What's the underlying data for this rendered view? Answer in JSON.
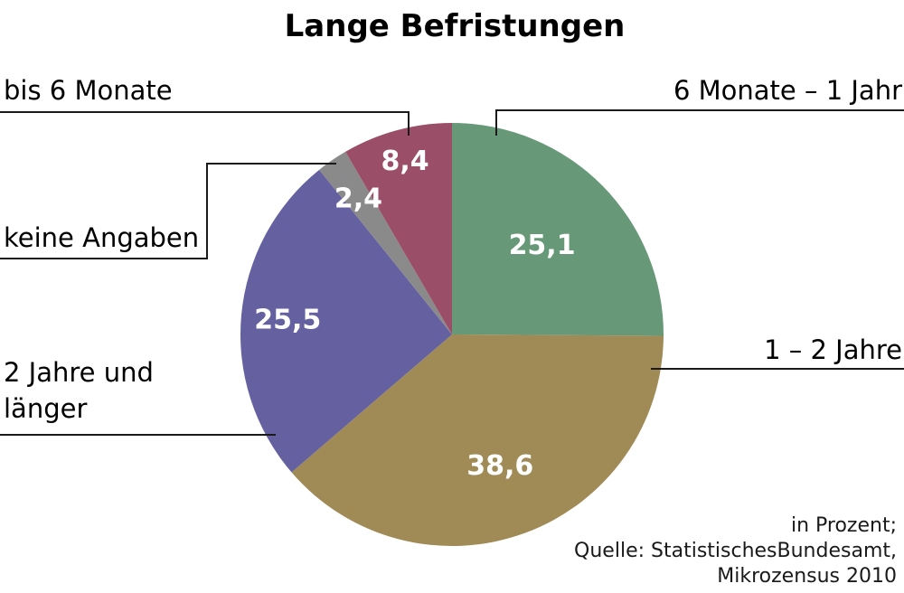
{
  "chart_data": {
    "type": "pie",
    "title": "Lange Befristungen",
    "slices": [
      {
        "label": "6 Monate – 1 Jahr",
        "value": 25.1,
        "display": "25,1",
        "color": "#679878"
      },
      {
        "label": "1 – 2 Jahre",
        "value": 38.6,
        "display": "38,6",
        "color": "#a08b57"
      },
      {
        "label": [
          "2 Jahre und",
          "länger"
        ],
        "value": 25.5,
        "display": "25,5",
        "color": "#6561a0"
      },
      {
        "label": "keine Angaben",
        "value": 2.4,
        "display": "2,4",
        "color": "#8a8a8a"
      },
      {
        "label": "bis 6 Monate",
        "value": 8.4,
        "display": "8,4",
        "color": "#9a4e68"
      }
    ],
    "start": "12 o'clock, clockwise",
    "legend": "none (external labels with leader lines)"
  },
  "notes": [
    "in Prozent;",
    "Quelle: StatistischesBundesamt,",
    "Mikrozensus 2010"
  ]
}
